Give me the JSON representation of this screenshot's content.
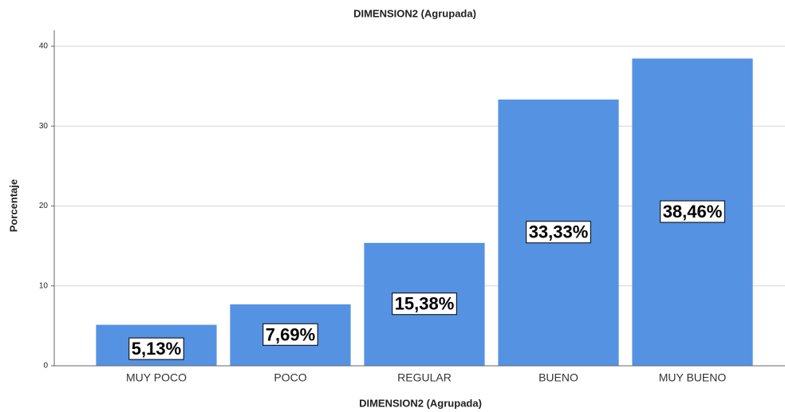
{
  "chart_data": {
    "type": "bar",
    "title": "DIMENSION2 (Agrupada)",
    "x_label": "DIMENSION2 (Agrupada)",
    "y_label": "Porcentaje",
    "categories": [
      "MUY POCO",
      "POCO",
      "REGULAR",
      "BUENO",
      "MUY BUENO"
    ],
    "values": [
      5.13,
      7.69,
      15.38,
      33.33,
      38.46
    ],
    "value_labels": [
      "5,13%",
      "7,69%",
      "15,38%",
      "33,33%",
      "38,46%"
    ],
    "color": "#5592e2",
    "ylim": [
      0,
      40
    ],
    "yticks": [
      0,
      10,
      20,
      30,
      40
    ],
    "grid": true
  }
}
